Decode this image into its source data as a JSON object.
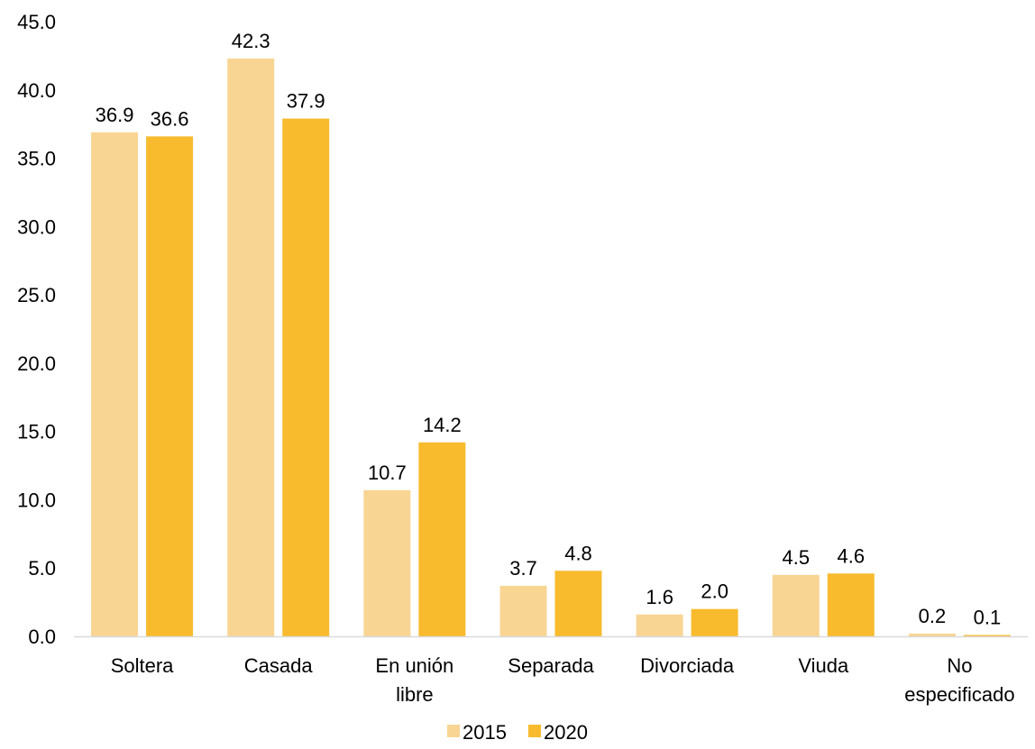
{
  "chart_data": {
    "type": "bar",
    "categories": [
      [
        "Soltera"
      ],
      [
        "Casada"
      ],
      [
        "En unión",
        "libre"
      ],
      [
        "Separada"
      ],
      [
        "Divorciada"
      ],
      [
        "Viuda"
      ],
      [
        "No",
        "especificado"
      ]
    ],
    "series": [
      {
        "name": "2015",
        "color": "#F9D594",
        "values": [
          36.9,
          42.3,
          10.7,
          3.7,
          1.6,
          4.5,
          0.2
        ],
        "labels": [
          "36.9",
          "42.3",
          "10.7",
          "3.7",
          "1.6",
          "4.5",
          "0.2"
        ]
      },
      {
        "name": "2020",
        "color": "#F8BB2E",
        "values": [
          36.6,
          37.9,
          14.2,
          4.8,
          2.0,
          4.6,
          0.1
        ],
        "labels": [
          "36.6",
          "37.9",
          "14.2",
          "4.8",
          "2.0",
          "4.6",
          "0.1"
        ]
      }
    ],
    "yticks": [
      "0.0",
      "5.0",
      "10.0",
      "15.0",
      "20.0",
      "25.0",
      "30.0",
      "35.0",
      "40.0",
      "45.0"
    ],
    "ylim": [
      0,
      45
    ],
    "title": "",
    "xlabel": "",
    "ylabel": "",
    "grid": false,
    "legend": "bottom-center",
    "axis_color": "#D9D9D9"
  }
}
